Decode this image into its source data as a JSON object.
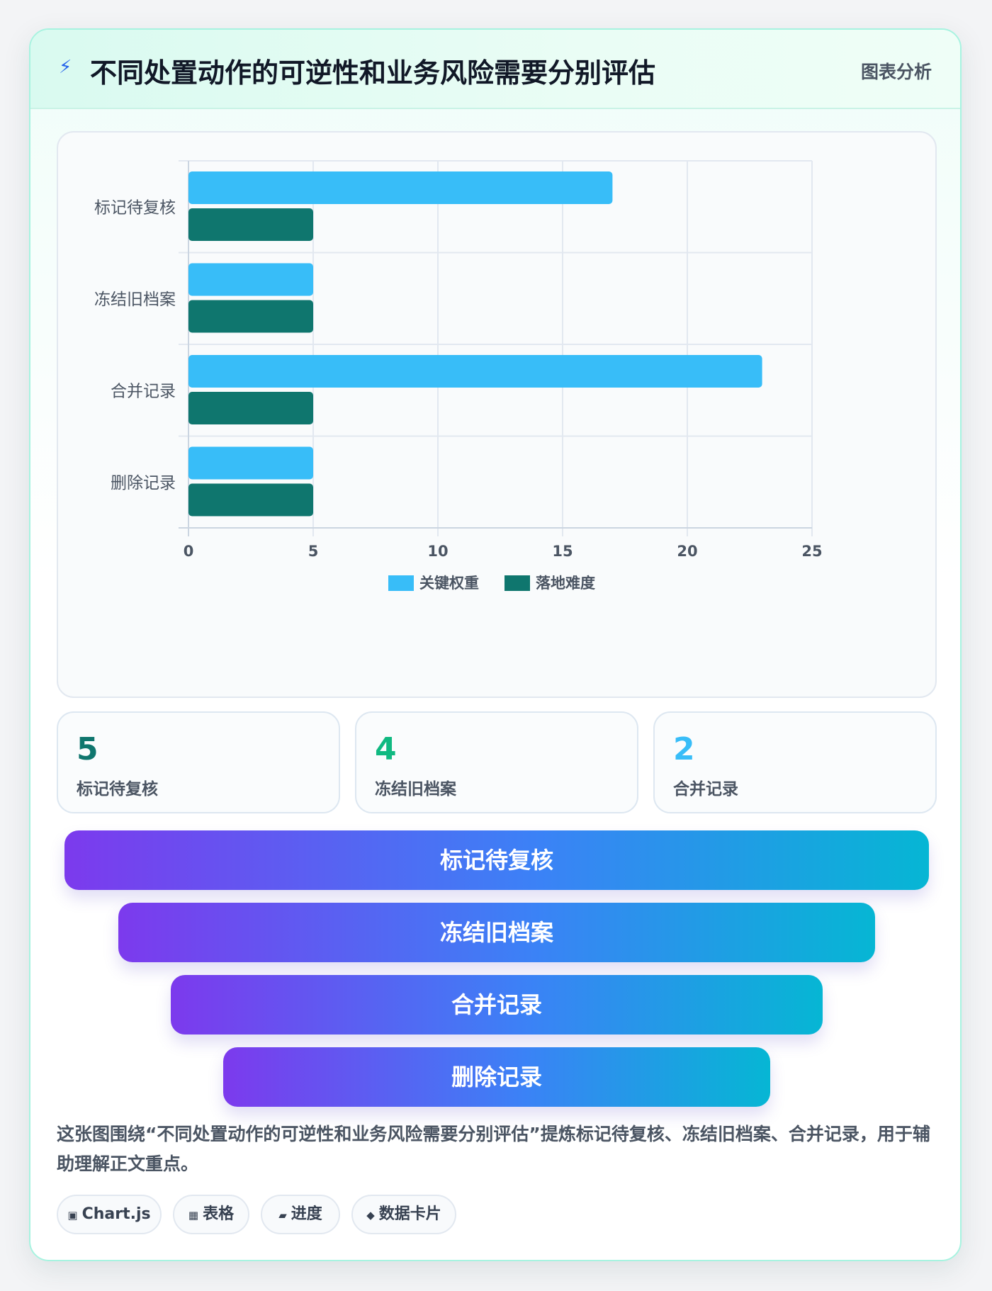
{
  "header": {
    "title": "不同处置动作的可逆性和业务风险需要分别评估",
    "tag": "图表分析"
  },
  "chart_data": {
    "type": "bar",
    "orientation": "horizontal",
    "categories": [
      "标记待复核",
      "冻结旧档案",
      "合并记录",
      "删除记录"
    ],
    "series": [
      {
        "name": "关键权重",
        "values": [
          17,
          5,
          23,
          5
        ],
        "color": "#38bdf8"
      },
      {
        "name": "落地难度",
        "values": [
          5,
          5,
          5,
          5
        ],
        "color": "#0f766e"
      }
    ],
    "xlim": [
      0,
      25
    ],
    "xticks": [
      "0",
      "5",
      "10",
      "15",
      "20",
      "25"
    ],
    "grid": true,
    "legend_position": "bottom"
  },
  "stats": [
    {
      "value": "5",
      "label": "标记待复核",
      "color": "#0f766e"
    },
    {
      "value": "4",
      "label": "冻结旧档案",
      "color": "#10b981"
    },
    {
      "value": "2",
      "label": "合并记录",
      "color": "#38bdf8"
    }
  ],
  "funnel": [
    "标记待复核",
    "冻结旧档案",
    "合并记录",
    "删除记录"
  ],
  "description": "这张图围绕“不同处置动作的可逆性和业务风险需要分别评估”提炼标记待复核、冻结旧档案、合并记录，用于辅助理解正文重点。",
  "chips": [
    {
      "icon": "▣",
      "icon_name": "chart-icon",
      "label": "Chart.js"
    },
    {
      "icon": "▦",
      "icon_name": "table-icon",
      "label": "表格"
    },
    {
      "icon": "▰",
      "icon_name": "progress-icon",
      "label": "进度"
    },
    {
      "icon": "◆",
      "icon_name": "diamond-icon",
      "label": "数据卡片"
    }
  ]
}
